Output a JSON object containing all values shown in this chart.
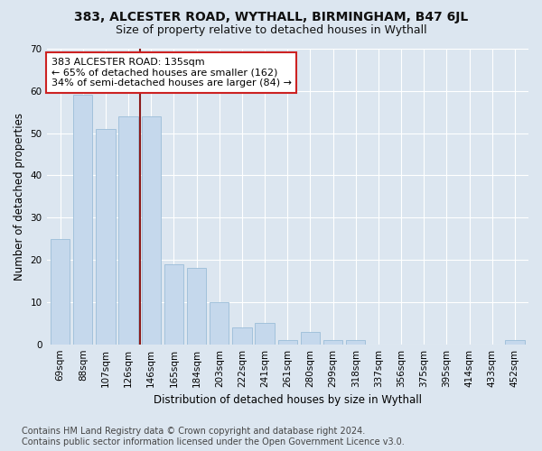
{
  "title": "383, ALCESTER ROAD, WYTHALL, BIRMINGHAM, B47 6JL",
  "subtitle": "Size of property relative to detached houses in Wythall",
  "xlabel": "Distribution of detached houses by size in Wythall",
  "ylabel": "Number of detached properties",
  "categories": [
    "69sqm",
    "88sqm",
    "107sqm",
    "126sqm",
    "146sqm",
    "165sqm",
    "184sqm",
    "203sqm",
    "222sqm",
    "241sqm",
    "261sqm",
    "280sqm",
    "299sqm",
    "318sqm",
    "337sqm",
    "356sqm",
    "375sqm",
    "395sqm",
    "414sqm",
    "433sqm",
    "452sqm"
  ],
  "values": [
    25,
    59,
    51,
    54,
    54,
    19,
    18,
    10,
    4,
    5,
    1,
    3,
    1,
    1,
    0,
    0,
    0,
    0,
    0,
    0,
    1
  ],
  "bar_color": "#c5d8ec",
  "bar_edge_color": "#9bbdd8",
  "vline_x": 3.5,
  "vline_color": "#8b1a1a",
  "annotation_line1": "383 ALCESTER ROAD: 135sqm",
  "annotation_line2": "← 65% of detached houses are smaller (162)",
  "annotation_line3": "34% of semi-detached houses are larger (84) →",
  "annotation_box_color": "#ffffff",
  "annotation_box_edge": "#cc2222",
  "ylim": [
    0,
    70
  ],
  "yticks": [
    0,
    10,
    20,
    30,
    40,
    50,
    60,
    70
  ],
  "background_color": "#dce6f0",
  "plot_bg_color": "#dce6f0",
  "footer": "Contains HM Land Registry data © Crown copyright and database right 2024.\nContains public sector information licensed under the Open Government Licence v3.0.",
  "title_fontsize": 10,
  "subtitle_fontsize": 9,
  "axis_label_fontsize": 8.5,
  "tick_fontsize": 7.5,
  "annotation_fontsize": 8,
  "footer_fontsize": 7
}
